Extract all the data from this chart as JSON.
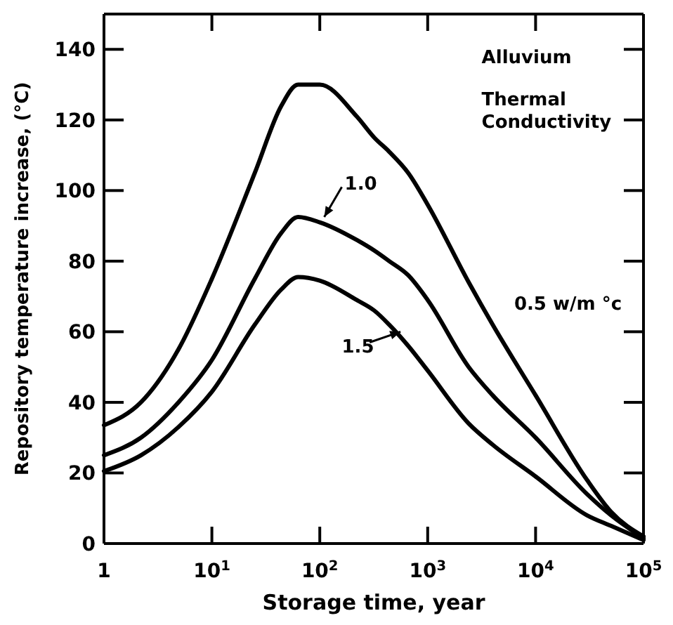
{
  "chart_data": {
    "type": "line",
    "xlabel": "Storage time, year",
    "ylabel": "Repository temperature increase, (°C)",
    "log": "x",
    "xlim": [
      1,
      100000
    ],
    "ylim": [
      0,
      150
    ],
    "xticks": [
      {
        "value": 1,
        "label": "1"
      },
      {
        "value": 10,
        "label": "10$^{1}$"
      },
      {
        "value": 100,
        "label": "10$^{2}$"
      },
      {
        "value": 1000,
        "label": "10$^{3}$"
      },
      {
        "value": 10000,
        "label": "10$^{4}$"
      },
      {
        "value": 100000,
        "label": "10$^{5}$"
      }
    ],
    "yticks": [
      0,
      20,
      40,
      60,
      80,
      100,
      120,
      140
    ],
    "x": [
      1,
      2.2,
      4.9,
      10,
      25,
      44,
      63,
      100,
      220,
      320,
      440,
      660,
      1000,
      2400,
      4000,
      10000,
      30000,
      50000,
      100000
    ],
    "series": [
      {
        "name": "0.5 w/m °c",
        "color": "#000000",
        "values": [
          33.5,
          40,
          55,
          75,
          105,
          124,
          130,
          130,
          121,
          115,
          111,
          105,
          96,
          74,
          62,
          42,
          18,
          9,
          2
        ]
      },
      {
        "name": "1.0",
        "color": "#000000",
        "values": [
          25,
          30,
          40,
          52,
          75,
          88,
          92.5,
          91,
          86,
          83,
          80,
          76,
          69,
          50,
          42,
          30,
          14,
          8,
          1.5
        ]
      },
      {
        "name": "1.5",
        "color": "#000000",
        "values": [
          20.5,
          25,
          33,
          43,
          62,
          72,
          75.5,
          74.5,
          69,
          66,
          62,
          56,
          49,
          34,
          28,
          19,
          8,
          5,
          1
        ]
      }
    ],
    "annotations": [
      "Alluvium",
      "Thermal Conductivity"
    ],
    "grid": false,
    "marker": "none",
    "line_style": "solid"
  }
}
